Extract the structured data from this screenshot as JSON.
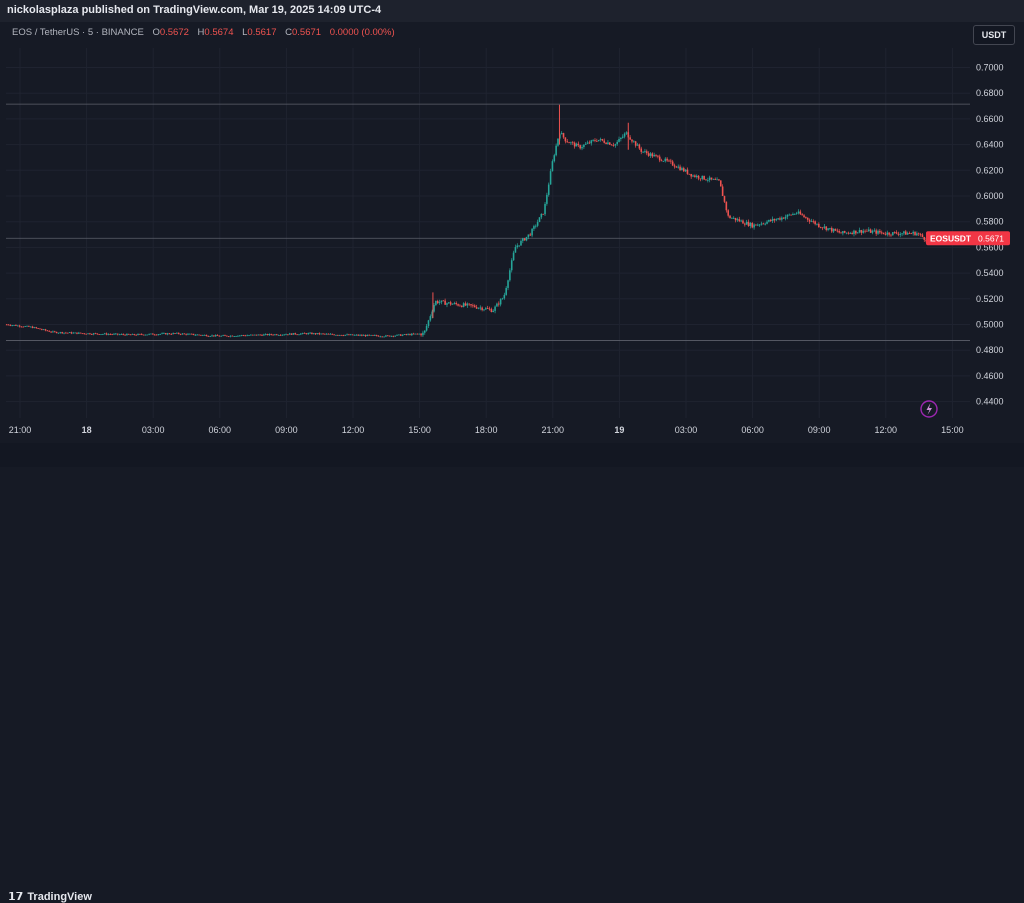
{
  "header": {
    "publisher": "nickolasplaza published on TradingView.com, Mar 19, 2025 14:09 UTC-4"
  },
  "symbol": {
    "title": "EOS / TetherUS · 5 · BINANCE",
    "open_label": "O",
    "open": "0.5672",
    "high_label": "H",
    "high": "0.5674",
    "low_label": "L",
    "low": "0.5617",
    "close_label": "C",
    "close": "0.5671",
    "change": "0.0000 (0.00%)"
  },
  "currency_button": "USDT",
  "footer": {
    "logo_mark": "𝟭𝟳",
    "logo_text": "TradingView"
  },
  "colors": {
    "background": "#161a25",
    "up": "#26a69a",
    "down": "#ef5350",
    "axis_text": "#d1d4dc",
    "price_tag": "#f23645"
  },
  "chart_data": {
    "type": "candlestick",
    "instrument": "EOSUSDT",
    "price_tag_label": "EOSUSDT",
    "last_price": 0.5671,
    "y_ticks": [
      "0.7000",
      "0.6800",
      "0.6600",
      "0.6400",
      "0.6200",
      "0.6000",
      "0.5800",
      "0.5600",
      "0.5400",
      "0.5200",
      "0.5000",
      "0.4800",
      "0.4600",
      "0.4400"
    ],
    "ylim": [
      0.43,
      0.71
    ],
    "x_ticks": [
      {
        "label": "21:00",
        "hours": 0
      },
      {
        "label": "18",
        "hours": 3
      },
      {
        "label": "03:00",
        "hours": 6
      },
      {
        "label": "06:00",
        "hours": 9
      },
      {
        "label": "09:00",
        "hours": 12
      },
      {
        "label": "12:00",
        "hours": 15
      },
      {
        "label": "15:00",
        "hours": 18
      },
      {
        "label": "18:00",
        "hours": 21
      },
      {
        "label": "21:00",
        "hours": 24
      },
      {
        "label": "19",
        "hours": 27
      },
      {
        "label": "03:00",
        "hours": 30
      },
      {
        "label": "06:00",
        "hours": 33
      },
      {
        "label": "09:00",
        "hours": 36
      },
      {
        "label": "12:00",
        "hours": 39
      },
      {
        "label": "15:00",
        "hours": 42
      }
    ],
    "xlim_hours": [
      -0.5,
      43.5
    ],
    "horizontal_lines": [
      0.6715,
      0.5671,
      0.4875
    ],
    "price_path": [
      [
        -0.6,
        0.5
      ],
      [
        0.5,
        0.498
      ],
      [
        1.5,
        0.494
      ],
      [
        3,
        0.493
      ],
      [
        5,
        0.492
      ],
      [
        7,
        0.493
      ],
      [
        9,
        0.491
      ],
      [
        11,
        0.492
      ],
      [
        13,
        0.493
      ],
      [
        14.5,
        0.492
      ],
      [
        16.5,
        0.491
      ],
      [
        18.2,
        0.493
      ],
      [
        18.7,
        0.518
      ],
      [
        19.5,
        0.516
      ],
      [
        20.5,
        0.514
      ],
      [
        21.3,
        0.511
      ],
      [
        21.8,
        0.522
      ],
      [
        22.3,
        0.56
      ],
      [
        23,
        0.571
      ],
      [
        23.6,
        0.588
      ],
      [
        24,
        0.628
      ],
      [
        24.3,
        0.65
      ],
      [
        24.6,
        0.643
      ],
      [
        25.2,
        0.638
      ],
      [
        26,
        0.644
      ],
      [
        26.8,
        0.64
      ],
      [
        27.3,
        0.649
      ],
      [
        28,
        0.635
      ],
      [
        29,
        0.628
      ],
      [
        29.5,
        0.624
      ],
      [
        30.3,
        0.616
      ],
      [
        31.5,
        0.611
      ],
      [
        31.9,
        0.584
      ],
      [
        33,
        0.577
      ],
      [
        34.3,
        0.583
      ],
      [
        35,
        0.587
      ],
      [
        36,
        0.577
      ],
      [
        37,
        0.571
      ],
      [
        38,
        0.573
      ],
      [
        39,
        0.571
      ],
      [
        40.4,
        0.571
      ],
      [
        41.1,
        0.563
      ],
      [
        41.6,
        0.567
      ]
    ],
    "spikes": [
      {
        "hours": 18.6,
        "high": 0.525,
        "low": 0.505
      },
      {
        "hours": 24.3,
        "high": 0.671,
        "low": 0.64
      },
      {
        "hours": 27.4,
        "high": 0.657,
        "low": 0.636
      }
    ]
  }
}
